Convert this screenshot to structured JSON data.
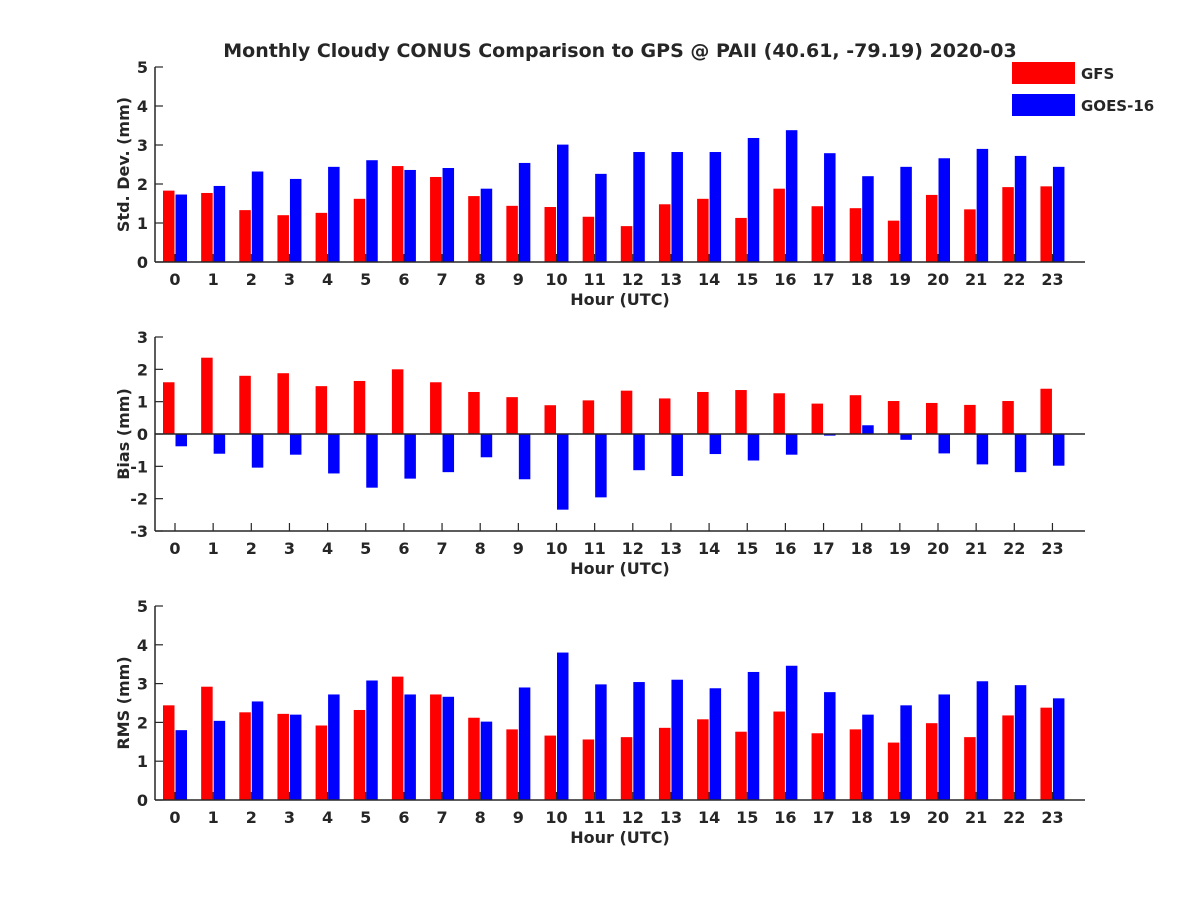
{
  "title": "Monthly Cloudy CONUS Comparison to GPS @ PAII (40.61, -79.19) 2020-03",
  "legend": [
    {
      "name": "GFS",
      "color": "#ff0000"
    },
    {
      "name": "GOES-16",
      "color": "#0000ff"
    }
  ],
  "chart_data": [
    {
      "type": "bar",
      "ylabel": "Std. Dev. (mm)",
      "xlabel": "Hour (UTC)",
      "ylim": [
        0,
        5
      ],
      "yticks": [
        0,
        1,
        2,
        3,
        4,
        5
      ],
      "categories": [
        "0",
        "1",
        "2",
        "3",
        "4",
        "5",
        "6",
        "7",
        "8",
        "9",
        "10",
        "11",
        "12",
        "13",
        "14",
        "15",
        "16",
        "17",
        "18",
        "19",
        "20",
        "21",
        "22",
        "23"
      ],
      "series": [
        {
          "name": "GFS",
          "values": [
            1.83,
            1.77,
            1.33,
            1.2,
            1.26,
            1.62,
            2.46,
            2.18,
            1.69,
            1.44,
            1.41,
            1.16,
            0.92,
            1.48,
            1.62,
            1.13,
            1.88,
            1.43,
            1.38,
            1.06,
            1.72,
            1.35,
            1.92,
            1.94
          ]
        },
        {
          "name": "GOES-16",
          "values": [
            1.73,
            1.95,
            2.32,
            2.13,
            2.44,
            2.61,
            2.36,
            2.41,
            1.88,
            2.54,
            3.01,
            2.26,
            2.82,
            2.82,
            2.82,
            3.18,
            3.38,
            2.79,
            2.2,
            2.44,
            2.66,
            2.9,
            2.72,
            2.44
          ]
        }
      ]
    },
    {
      "type": "bar",
      "ylabel": "Bias (mm)",
      "xlabel": "Hour (UTC)",
      "ylim": [
        -3,
        3
      ],
      "yticks": [
        -3,
        -2,
        -1,
        0,
        1,
        2,
        3
      ],
      "categories": [
        "0",
        "1",
        "2",
        "3",
        "4",
        "5",
        "6",
        "7",
        "8",
        "9",
        "10",
        "11",
        "12",
        "13",
        "14",
        "15",
        "16",
        "17",
        "18",
        "19",
        "20",
        "21",
        "22",
        "23"
      ],
      "series": [
        {
          "name": "GFS",
          "values": [
            1.6,
            2.36,
            1.8,
            1.88,
            1.48,
            1.64,
            2.0,
            1.6,
            1.3,
            1.14,
            0.89,
            1.04,
            1.34,
            1.1,
            1.3,
            1.36,
            1.26,
            0.94,
            1.2,
            1.02,
            0.96,
            0.9,
            1.02,
            1.4
          ]
        },
        {
          "name": "GOES-16",
          "values": [
            -0.38,
            -0.61,
            -1.04,
            -0.64,
            -1.22,
            -1.66,
            -1.38,
            -1.18,
            -0.72,
            -1.4,
            -2.34,
            -1.96,
            -1.12,
            -1.3,
            -0.62,
            -0.82,
            -0.64,
            -0.05,
            0.27,
            -0.18,
            -0.6,
            -0.94,
            -1.18,
            -0.98
          ]
        }
      ]
    },
    {
      "type": "bar",
      "ylabel": "RMS (mm)",
      "xlabel": "Hour (UTC)",
      "ylim": [
        0,
        5
      ],
      "yticks": [
        0,
        1,
        2,
        3,
        4,
        5
      ],
      "categories": [
        "0",
        "1",
        "2",
        "3",
        "4",
        "5",
        "6",
        "7",
        "8",
        "9",
        "10",
        "11",
        "12",
        "13",
        "14",
        "15",
        "16",
        "17",
        "18",
        "19",
        "20",
        "21",
        "22",
        "23"
      ],
      "series": [
        {
          "name": "GFS",
          "values": [
            2.44,
            2.92,
            2.26,
            2.22,
            1.92,
            2.32,
            3.18,
            2.72,
            2.12,
            1.82,
            1.66,
            1.56,
            1.62,
            1.86,
            2.08,
            1.76,
            2.28,
            1.72,
            1.82,
            1.48,
            1.98,
            1.62,
            2.18,
            2.38
          ]
        },
        {
          "name": "GOES-16",
          "values": [
            1.8,
            2.04,
            2.54,
            2.2,
            2.72,
            3.08,
            2.72,
            2.66,
            2.02,
            2.9,
            3.8,
            2.98,
            3.04,
            3.1,
            2.88,
            3.3,
            3.46,
            2.78,
            2.2,
            2.44,
            2.72,
            3.06,
            2.96,
            2.62
          ]
        }
      ]
    }
  ]
}
